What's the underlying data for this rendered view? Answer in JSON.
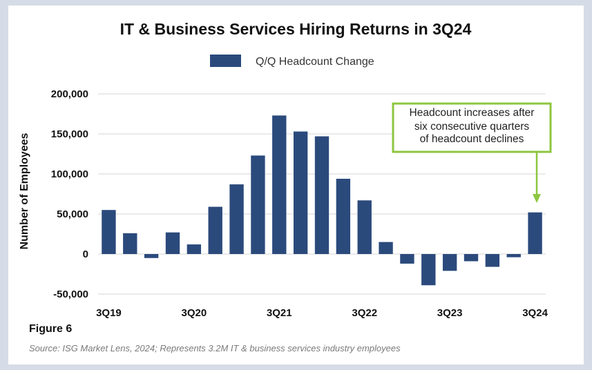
{
  "chart_data": {
    "type": "bar",
    "title": "IT & Business Services Hiring Returns in 3Q24",
    "ylabel": "Number of Employees",
    "xlabel": "",
    "ylim": [
      -50000,
      200000
    ],
    "yticks": [
      -50000,
      0,
      50000,
      100000,
      150000,
      200000
    ],
    "ytick_labels": [
      "-50,000",
      "0",
      "50,000",
      "100,000",
      "150,000",
      "200,000"
    ],
    "grid": true,
    "legend_placement": "top",
    "categories": [
      "3Q19",
      "4Q19",
      "1Q20",
      "2Q20",
      "3Q20",
      "4Q20",
      "1Q21",
      "2Q21",
      "3Q21",
      "4Q21",
      "1Q22",
      "2Q22",
      "3Q22",
      "4Q22",
      "1Q23",
      "2Q23",
      "3Q23",
      "4Q23",
      "1Q24",
      "2Q24",
      "3Q24"
    ],
    "xtick_labels": [
      "3Q19",
      "3Q20",
      "3Q21",
      "3Q22",
      "3Q23",
      "3Q24"
    ],
    "series": [
      {
        "name": "Q/Q Headcount Change",
        "color": "#2b4a7c",
        "values": [
          55000,
          26000,
          -5000,
          27000,
          12000,
          59000,
          87000,
          123000,
          173000,
          153000,
          147000,
          94000,
          67000,
          15000,
          -12000,
          -39000,
          -21000,
          -9000,
          -16000,
          -4000,
          52000
        ]
      }
    ],
    "annotation": {
      "lines": [
        "Headcount increases after",
        "six consecutive quarters",
        "of headcount declines"
      ],
      "target": "3Q24",
      "color": "#8dc63f"
    }
  },
  "figure_label": "Figure 6",
  "source": "Source: ISG Market Lens, 2024; Represents 3.2M IT & business services industry employees"
}
